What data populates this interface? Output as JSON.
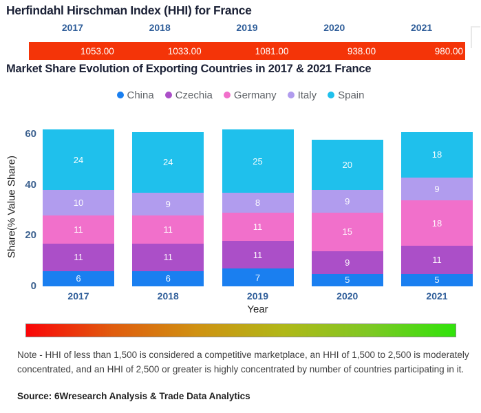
{
  "header": {
    "title": "Herfindahl Hirschman Index (HHI) for France",
    "years": [
      "2017",
      "2018",
      "2019",
      "2020",
      "2021"
    ],
    "values": [
      "1053.00",
      "1033.00",
      "1081.00",
      "938.00",
      "980.00"
    ],
    "band_color": "#f43408",
    "year_color": "#2e5d99"
  },
  "subtitle": "Market Share Evolution of Exporting Countries in 2017 & 2021 France",
  "chart_data": {
    "type": "bar",
    "subtype": "stacked",
    "categories": [
      "2017",
      "2018",
      "2019",
      "2020",
      "2021"
    ],
    "series": [
      {
        "name": "China",
        "color": "#1a7ff0",
        "values": [
          6,
          6,
          7,
          5,
          5
        ]
      },
      {
        "name": "Czechia",
        "color": "#ab4fc8",
        "values": [
          11,
          11,
          11,
          9,
          11
        ]
      },
      {
        "name": "Germany",
        "color": "#f170cb",
        "values": [
          11,
          11,
          11,
          15,
          18
        ]
      },
      {
        "name": "Italy",
        "color": "#b19cee",
        "values": [
          10,
          9,
          8,
          9,
          9
        ]
      },
      {
        "name": "Spain",
        "color": "#1fc0ec",
        "values": [
          24,
          24,
          25,
          20,
          18
        ]
      }
    ],
    "totals": [
      62,
      61,
      62,
      58,
      61
    ],
    "xlabel": "Year",
    "ylabel": "Share(% Value Share)",
    "yticks": [
      0,
      20,
      40,
      60
    ],
    "ylim": [
      0,
      62
    ],
    "grid": false,
    "legend_position": "top-center"
  },
  "gradient_bar": {
    "colors": [
      "#fa0508",
      "#e05c0e",
      "#cf9212",
      "#b0b818",
      "#7ec824",
      "#30e30b"
    ]
  },
  "note": "Note - HHI of less than 1,500 is considered a competitive marketplace, an HHI of 1,500 to 2,500 is moderately concentrated, and an HHI of 2,500 or greater is highly concentrated by number of countries participating in it.",
  "source": "Source: 6Wresearch Analysis & Trade Data Analytics"
}
